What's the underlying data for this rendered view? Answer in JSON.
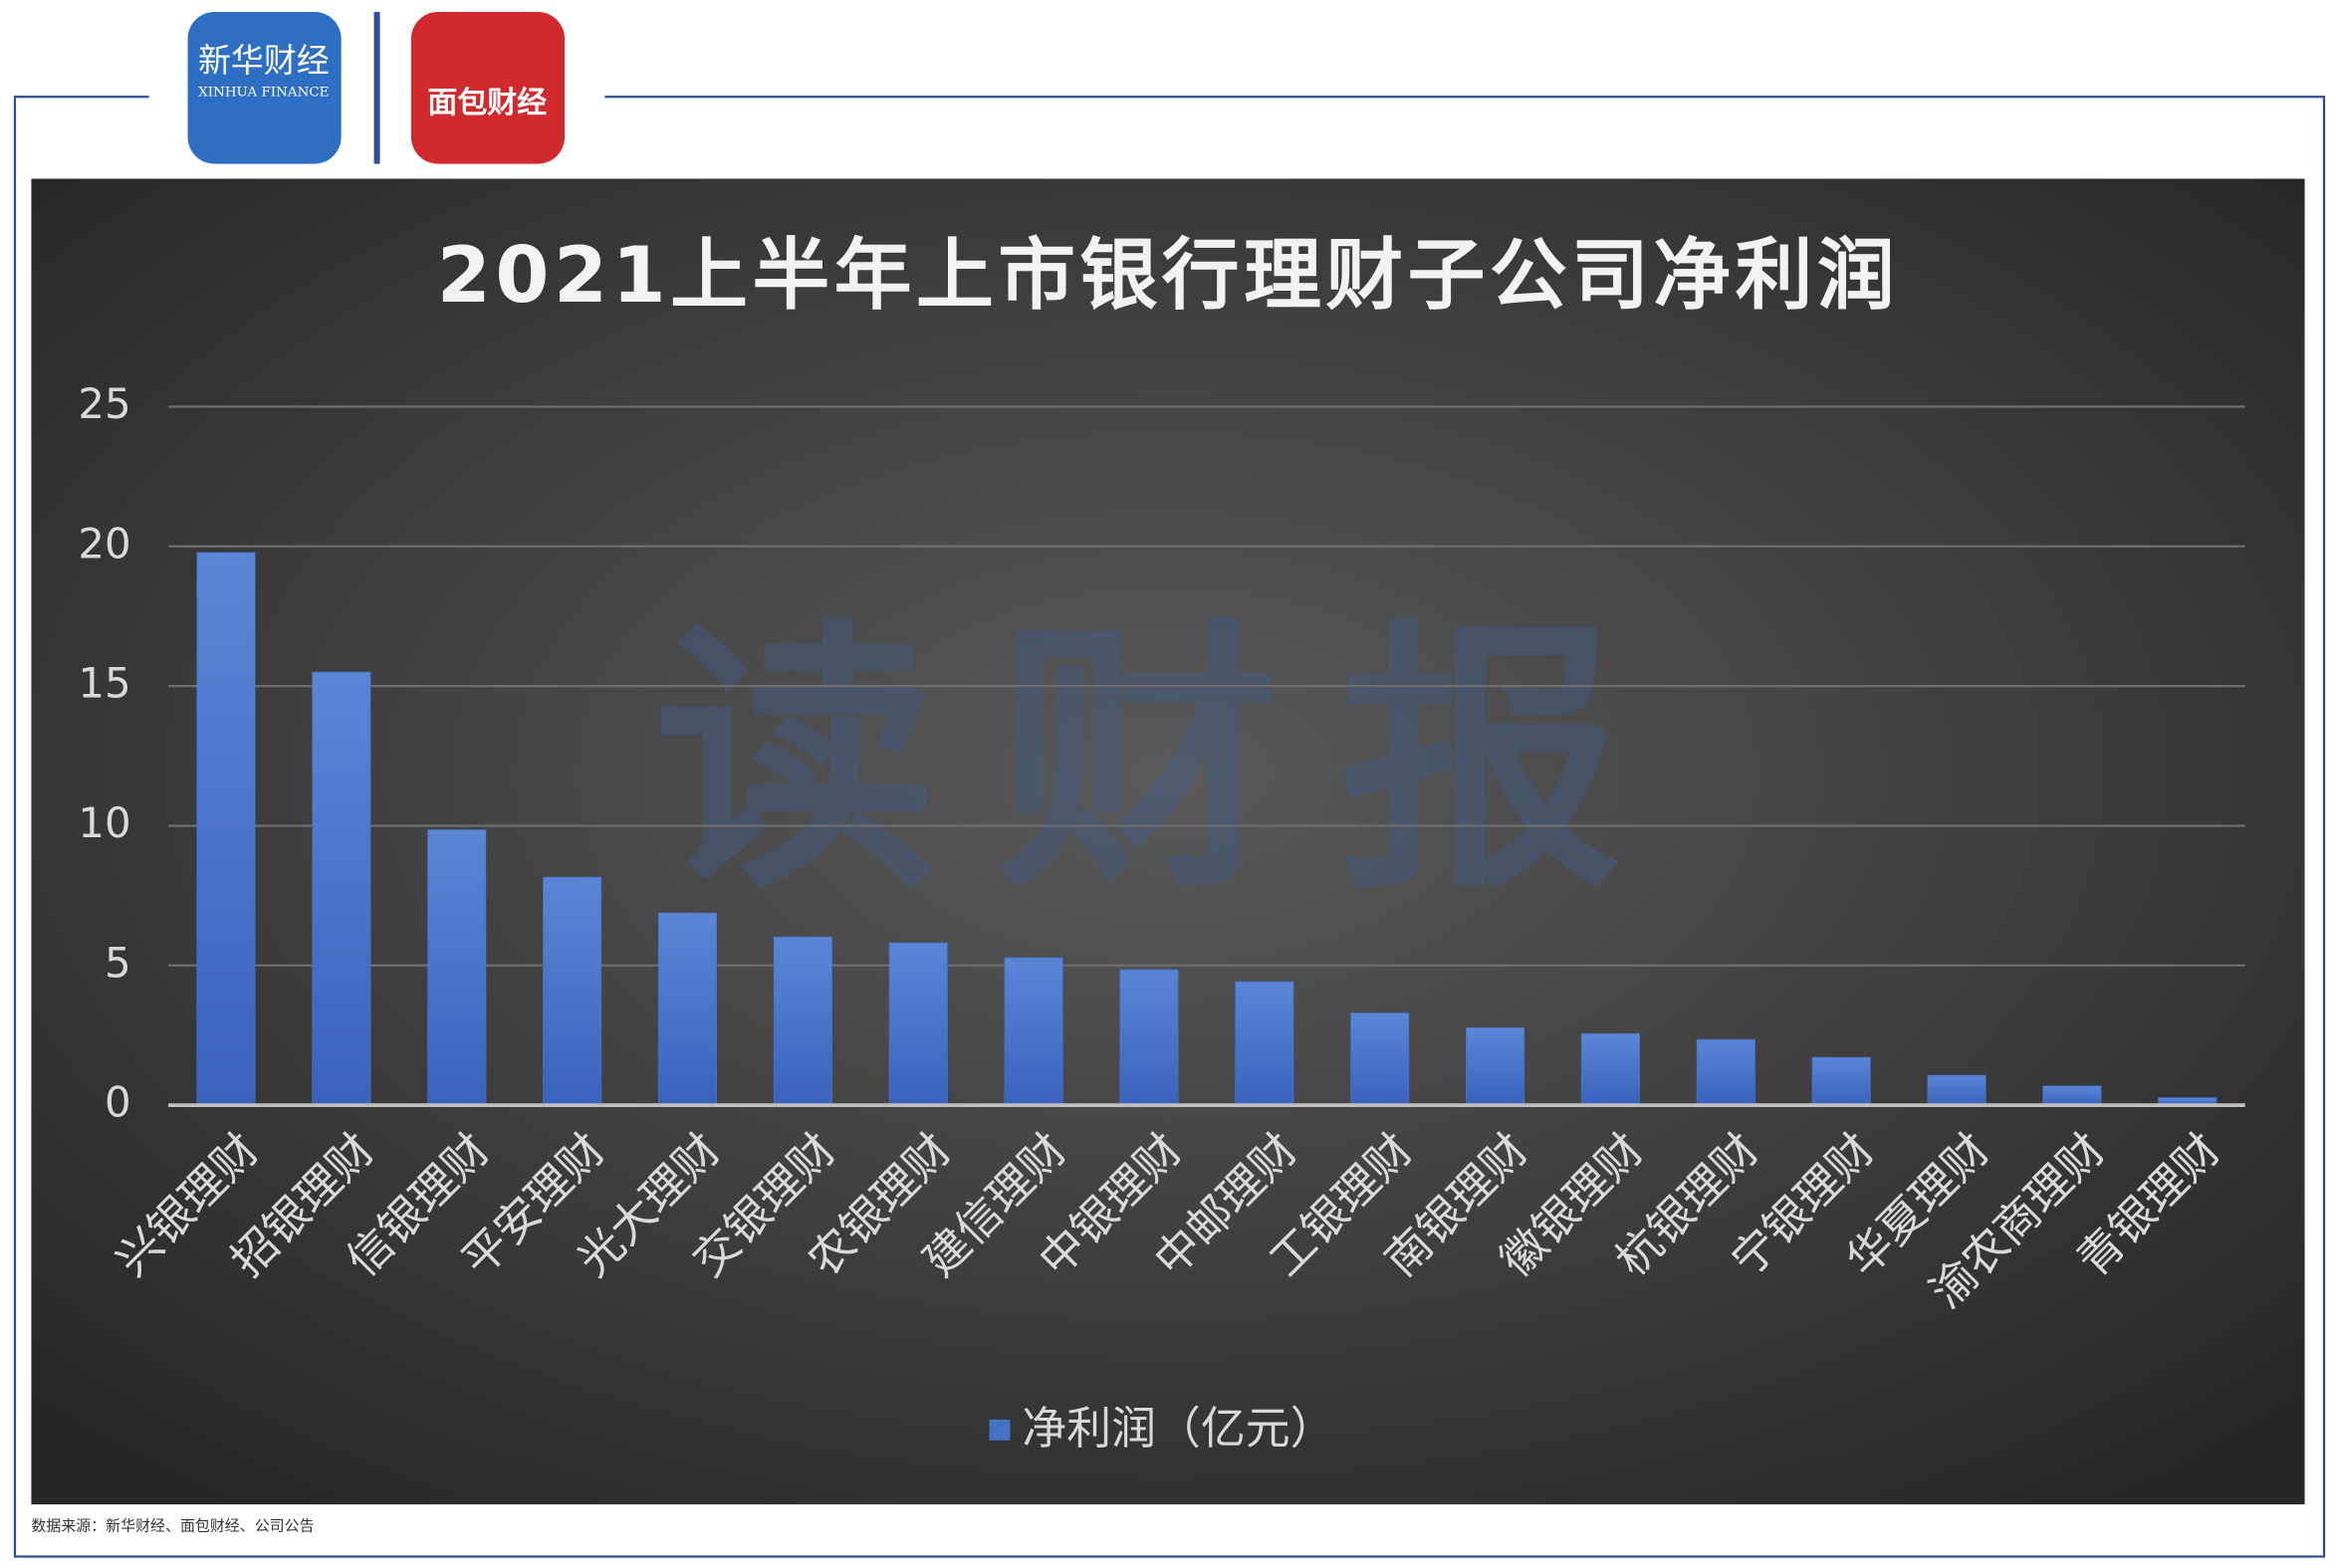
{
  "logos": {
    "xinhua": "新华财经",
    "xinhua_en": "XINHUA FINANCE",
    "mianbao": "面包财经"
  },
  "watermark": "读财报",
  "source": "数据来源：新华财经、面包财经、公司公告",
  "chart_data": {
    "type": "bar",
    "title": "2021上半年上市银行理财子公司净利润",
    "categories": [
      "兴银理财",
      "招银理财",
      "信银理财",
      "平安理财",
      "光大理财",
      "交银理财",
      "农银理财",
      "建信理财",
      "中银理财",
      "中邮理财",
      "工银理财",
      "南银理财",
      "徽银理财",
      "杭银理财",
      "宁银理财",
      "华夏理财",
      "渝农商理财",
      "青银理财"
    ],
    "series": [
      {
        "name": "净利润（亿元）",
        "color": "#4472c4",
        "values": [
          19.78,
          15.5,
          9.86,
          8.16,
          6.88,
          6.02,
          5.81,
          5.28,
          4.85,
          4.42,
          3.3,
          2.77,
          2.56,
          2.35,
          1.71,
          1.07,
          0.69,
          0.27
        ]
      }
    ],
    "ylim": [
      0,
      25
    ],
    "yticks": [
      0,
      5,
      10,
      15,
      20,
      25
    ],
    "grid": true,
    "legend": "bottom"
  }
}
